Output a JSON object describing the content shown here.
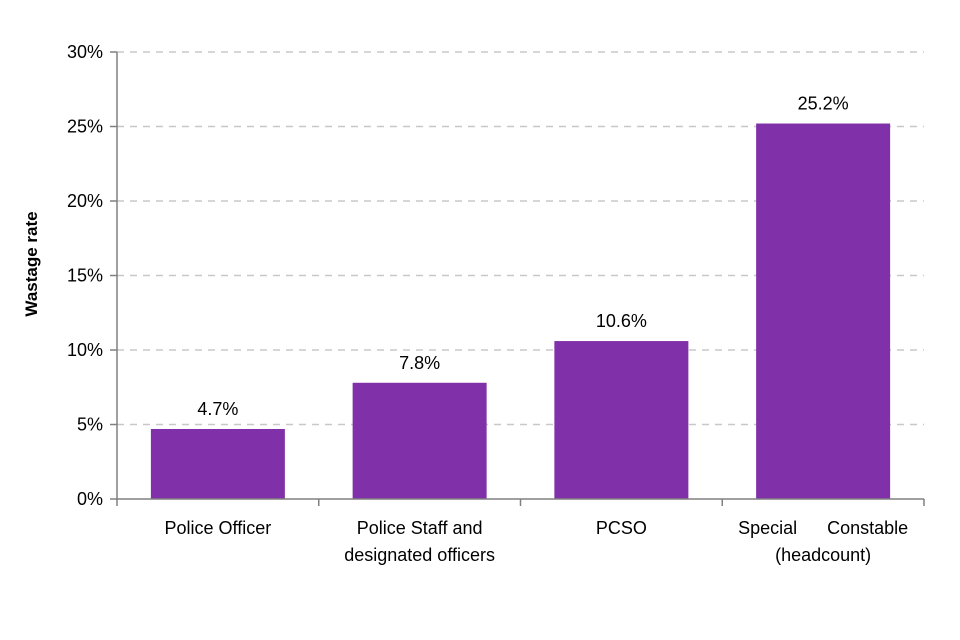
{
  "chart_data": {
    "type": "bar",
    "title": "",
    "xlabel": "",
    "ylabel": "Wastage rate",
    "categories": [
      [
        "Police Officer"
      ],
      [
        "Police Staff and",
        "designated officers"
      ],
      [
        "PCSO"
      ],
      [
        "Special      Constable",
        "(headcount)"
      ]
    ],
    "values": [
      4.7,
      7.8,
      10.6,
      25.2
    ],
    "data_labels": [
      "4.7%",
      "7.8%",
      "10.6%",
      "25.2%"
    ],
    "ylim": [
      0,
      30
    ],
    "yticks": [
      0,
      5,
      10,
      15,
      20,
      25,
      30
    ],
    "ytick_labels": [
      "0%",
      "5%",
      "10%",
      "15%",
      "20%",
      "25%",
      "30%"
    ],
    "grid": "horizontal-dashed",
    "bar_color": "#8030A8"
  }
}
